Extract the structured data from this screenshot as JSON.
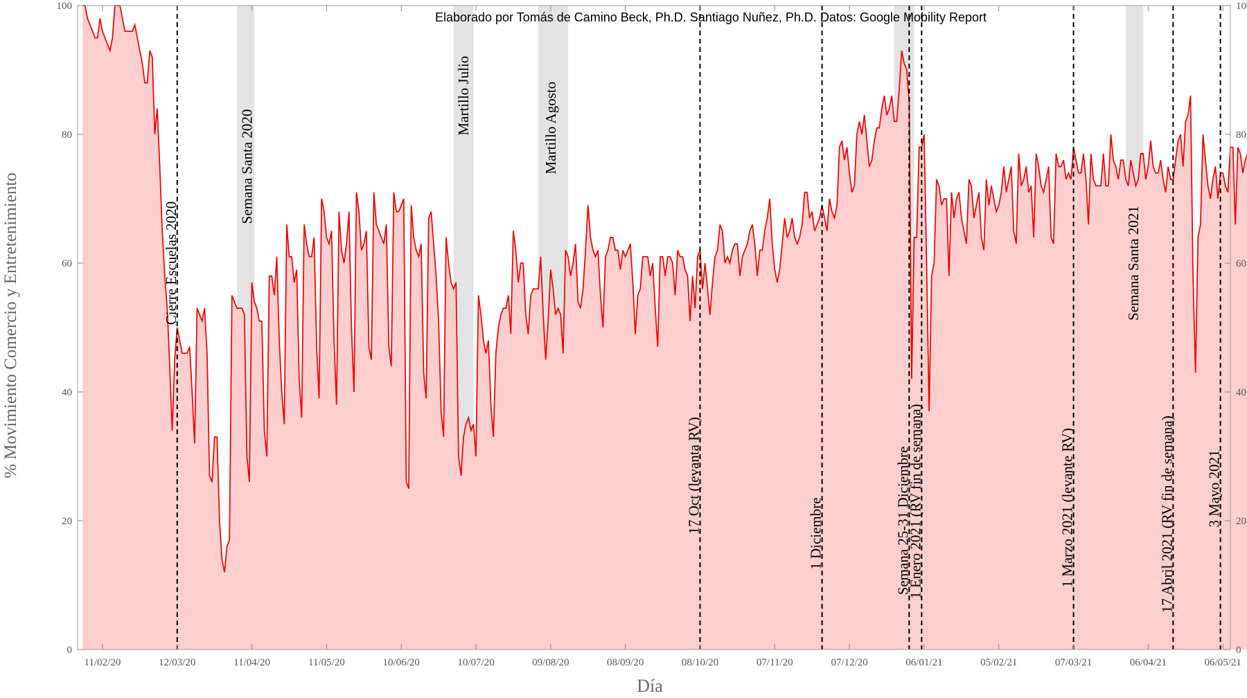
{
  "chart_data": {
    "type": "area",
    "title": "",
    "credit": "Elaborado por Tomás de Camino Beck, Ph.D. Santiago Nuñez, Ph.D. Datos: Google Mobility Report",
    "xlabel": "Día",
    "ylabel": "% Movimiento Comercio y Entretenimiento",
    "xrange": [
      "2020-02-01",
      "2021-05-09"
    ],
    "ylim": [
      0,
      100
    ],
    "yticks": [
      0,
      20,
      40,
      60,
      80,
      100
    ],
    "xticks": [
      {
        "date": "2020-02-11",
        "label": "11/02/20"
      },
      {
        "date": "2020-03-12",
        "label": "12/03/20"
      },
      {
        "date": "2020-04-11",
        "label": "11/04/20"
      },
      {
        "date": "2020-05-11",
        "label": "11/05/20"
      },
      {
        "date": "2020-06-10",
        "label": "10/06/20"
      },
      {
        "date": "2020-07-10",
        "label": "10/07/20"
      },
      {
        "date": "2020-08-09",
        "label": "09/08/20"
      },
      {
        "date": "2020-09-08",
        "label": "08/09/20"
      },
      {
        "date": "2020-10-08",
        "label": "08/10/20"
      },
      {
        "date": "2020-11-07",
        "label": "07/11/20"
      },
      {
        "date": "2020-12-07",
        "label": "07/12/20"
      },
      {
        "date": "2021-01-06",
        "label": "06/01/21"
      },
      {
        "date": "2021-02-05",
        "label": "05/02/21"
      },
      {
        "date": "2021-03-07",
        "label": "07/03/21"
      },
      {
        "date": "2021-04-06",
        "label": "06/04/21"
      },
      {
        "date": "2021-05-06",
        "label": "06/05/21"
      }
    ],
    "line_color": "#ee0000",
    "fill_color": "#fdcece",
    "band_color": "#d0d0d0",
    "grid": false,
    "series": [
      {
        "start_date": "2020-02-03",
        "values": [
          100,
          100,
          98,
          97,
          96,
          95,
          95,
          98,
          96,
          95,
          94,
          93,
          95,
          100,
          101,
          100,
          98,
          96,
          96,
          96,
          96,
          97,
          95,
          93,
          91,
          88,
          88,
          93,
          92,
          80,
          84,
          75,
          65,
          58,
          53,
          44,
          34,
          45,
          50,
          48,
          46,
          46,
          46,
          47,
          40,
          32,
          53,
          52,
          51,
          53,
          46,
          27,
          26,
          33,
          33,
          20,
          14,
          12,
          16,
          17,
          55,
          54,
          53,
          53,
          53,
          52,
          30,
          26,
          57,
          54,
          53,
          51,
          51,
          34,
          30,
          58,
          58,
          55,
          61,
          48,
          40,
          35,
          66,
          61,
          61,
          57,
          59,
          42,
          36,
          66,
          63,
          61,
          61,
          64,
          47,
          39,
          70,
          68,
          64,
          63,
          65,
          48,
          38,
          68,
          62,
          60,
          63,
          68,
          50,
          40,
          71,
          68,
          62,
          63,
          65,
          47,
          45,
          71,
          66,
          65,
          64,
          63,
          66,
          47,
          44,
          71,
          68,
          68,
          69,
          70,
          26,
          25,
          69,
          64,
          62,
          61,
          63,
          43,
          39,
          67,
          68,
          63,
          58,
          51,
          37,
          33,
          64,
          60,
          57,
          56,
          57,
          30,
          27,
          33,
          35,
          36,
          34,
          35,
          30,
          55,
          52,
          48,
          46,
          48,
          38,
          33,
          46,
          50,
          52,
          53,
          53,
          55,
          49,
          65,
          62,
          57,
          60,
          60,
          52,
          49,
          55,
          56,
          56,
          56,
          61,
          52,
          45,
          51,
          59,
          56,
          52,
          53,
          52,
          46,
          62,
          61,
          58,
          60,
          63,
          54,
          53,
          56,
          62,
          69,
          64,
          62,
          61,
          62,
          55,
          50,
          61,
          62,
          64,
          64,
          62,
          62,
          59,
          62,
          61,
          62,
          63,
          57,
          49,
          55,
          56,
          61,
          61,
          61,
          58,
          60,
          53,
          47,
          61,
          61,
          58,
          61,
          61,
          60,
          55,
          62,
          61,
          61,
          59,
          58,
          51,
          58,
          53,
          61,
          62,
          56,
          60,
          56,
          52,
          57,
          61,
          62,
          66,
          65,
          60,
          61,
          60,
          62,
          63,
          63,
          58,
          61,
          62,
          63,
          65,
          66,
          63,
          58,
          62,
          62,
          65,
          67,
          70,
          63,
          59,
          57,
          59,
          63,
          67,
          64,
          65,
          67,
          64,
          63,
          64,
          66,
          71,
          71,
          67,
          68,
          65,
          66,
          67,
          69,
          67,
          65,
          70,
          68,
          67,
          69,
          78,
          79,
          76,
          78,
          74,
          71,
          72,
          80,
          82,
          80,
          83,
          79,
          75,
          76,
          79,
          81,
          81,
          84,
          86,
          83,
          84,
          86,
          82,
          82,
          87,
          93,
          91,
          90,
          85,
          42,
          64,
          64,
          78,
          78,
          80,
          60,
          37,
          58,
          60,
          73,
          72,
          69,
          70,
          70,
          58,
          71,
          67,
          70,
          71,
          67,
          65,
          63,
          73,
          72,
          67,
          69,
          71,
          64,
          62,
          73,
          69,
          72,
          70,
          68,
          69,
          71,
          75,
          71,
          73,
          75,
          65,
          63,
          77,
          72,
          73,
          75,
          71,
          72,
          64,
          77,
          75,
          72,
          71,
          73,
          75,
          64,
          63,
          77,
          75,
          75,
          76,
          73,
          74,
          73,
          78,
          76,
          74,
          74,
          77,
          73,
          66,
          77,
          73,
          72,
          72,
          72,
          77,
          72,
          72,
          80,
          76,
          75,
          73,
          76,
          76,
          73,
          72,
          76,
          74,
          72,
          73,
          77,
          77,
          73,
          75,
          79,
          75,
          74,
          74,
          76,
          73,
          71,
          75,
          73,
          73,
          76,
          79,
          80,
          75,
          82,
          83,
          86,
          58,
          43,
          64,
          66,
          80,
          76,
          72,
          70,
          73,
          75,
          70,
          74,
          74,
          72,
          71,
          78,
          78,
          66,
          78,
          77,
          74,
          76,
          77,
          78,
          70,
          65,
          77,
          74,
          73,
          72,
          77,
          68,
          59,
          62,
          61,
          61,
          60,
          54,
          47,
          73,
          69,
          69,
          68,
          74
        ]
      }
    ],
    "bands": [
      {
        "start": "2020-04-05",
        "end": "2020-04-12"
      },
      {
        "start": "2020-07-01",
        "end": "2020-07-09"
      },
      {
        "start": "2020-08-04",
        "end": "2020-08-16"
      },
      {
        "start": "2020-12-25",
        "end": "2021-01-02"
      },
      {
        "start": "2021-03-28",
        "end": "2021-04-04"
      }
    ],
    "events": [
      {
        "date": "2020-03-12",
        "label": "Cierre Escuelas 2020",
        "label_y": 60
      },
      {
        "date": "2020-04-09",
        "label": "Semana Santa 2020",
        "label_y": 75,
        "no_line": true
      },
      {
        "date": "2020-07-05",
        "label": "Martillo Julio",
        "label_y": 86,
        "no_line": true
      },
      {
        "date": "2020-08-09",
        "label": "Martillo Agosto",
        "label_y": 81,
        "no_line": true
      },
      {
        "date": "2020-10-08",
        "label": "17 Oct (levanta RV)",
        "label_y": 27
      },
      {
        "date": "2020-11-26",
        "label": "1 Diciembre",
        "label_y": 18
      },
      {
        "date": "2020-12-31",
        "label": "Semana 25-31 Diciembre",
        "label_y": 20
      },
      {
        "date": "2021-01-05",
        "label": "1 Enero 2021 (RV fin de semana)",
        "label_y": 23
      },
      {
        "date": "2021-03-07",
        "label": "1 Marzo 2021 (levante RV)",
        "label_y": 22
      },
      {
        "date": "2021-03-31",
        "label": "Semana Santa 2021",
        "label_y": 60,
        "no_line": true
      },
      {
        "date": "2021-04-16",
        "label": "17 Abril 2021 (RV fin de semana)",
        "label_y": 21
      },
      {
        "date": "2021-05-05",
        "label": "3 Mayo 2021",
        "label_y": 25
      }
    ]
  }
}
